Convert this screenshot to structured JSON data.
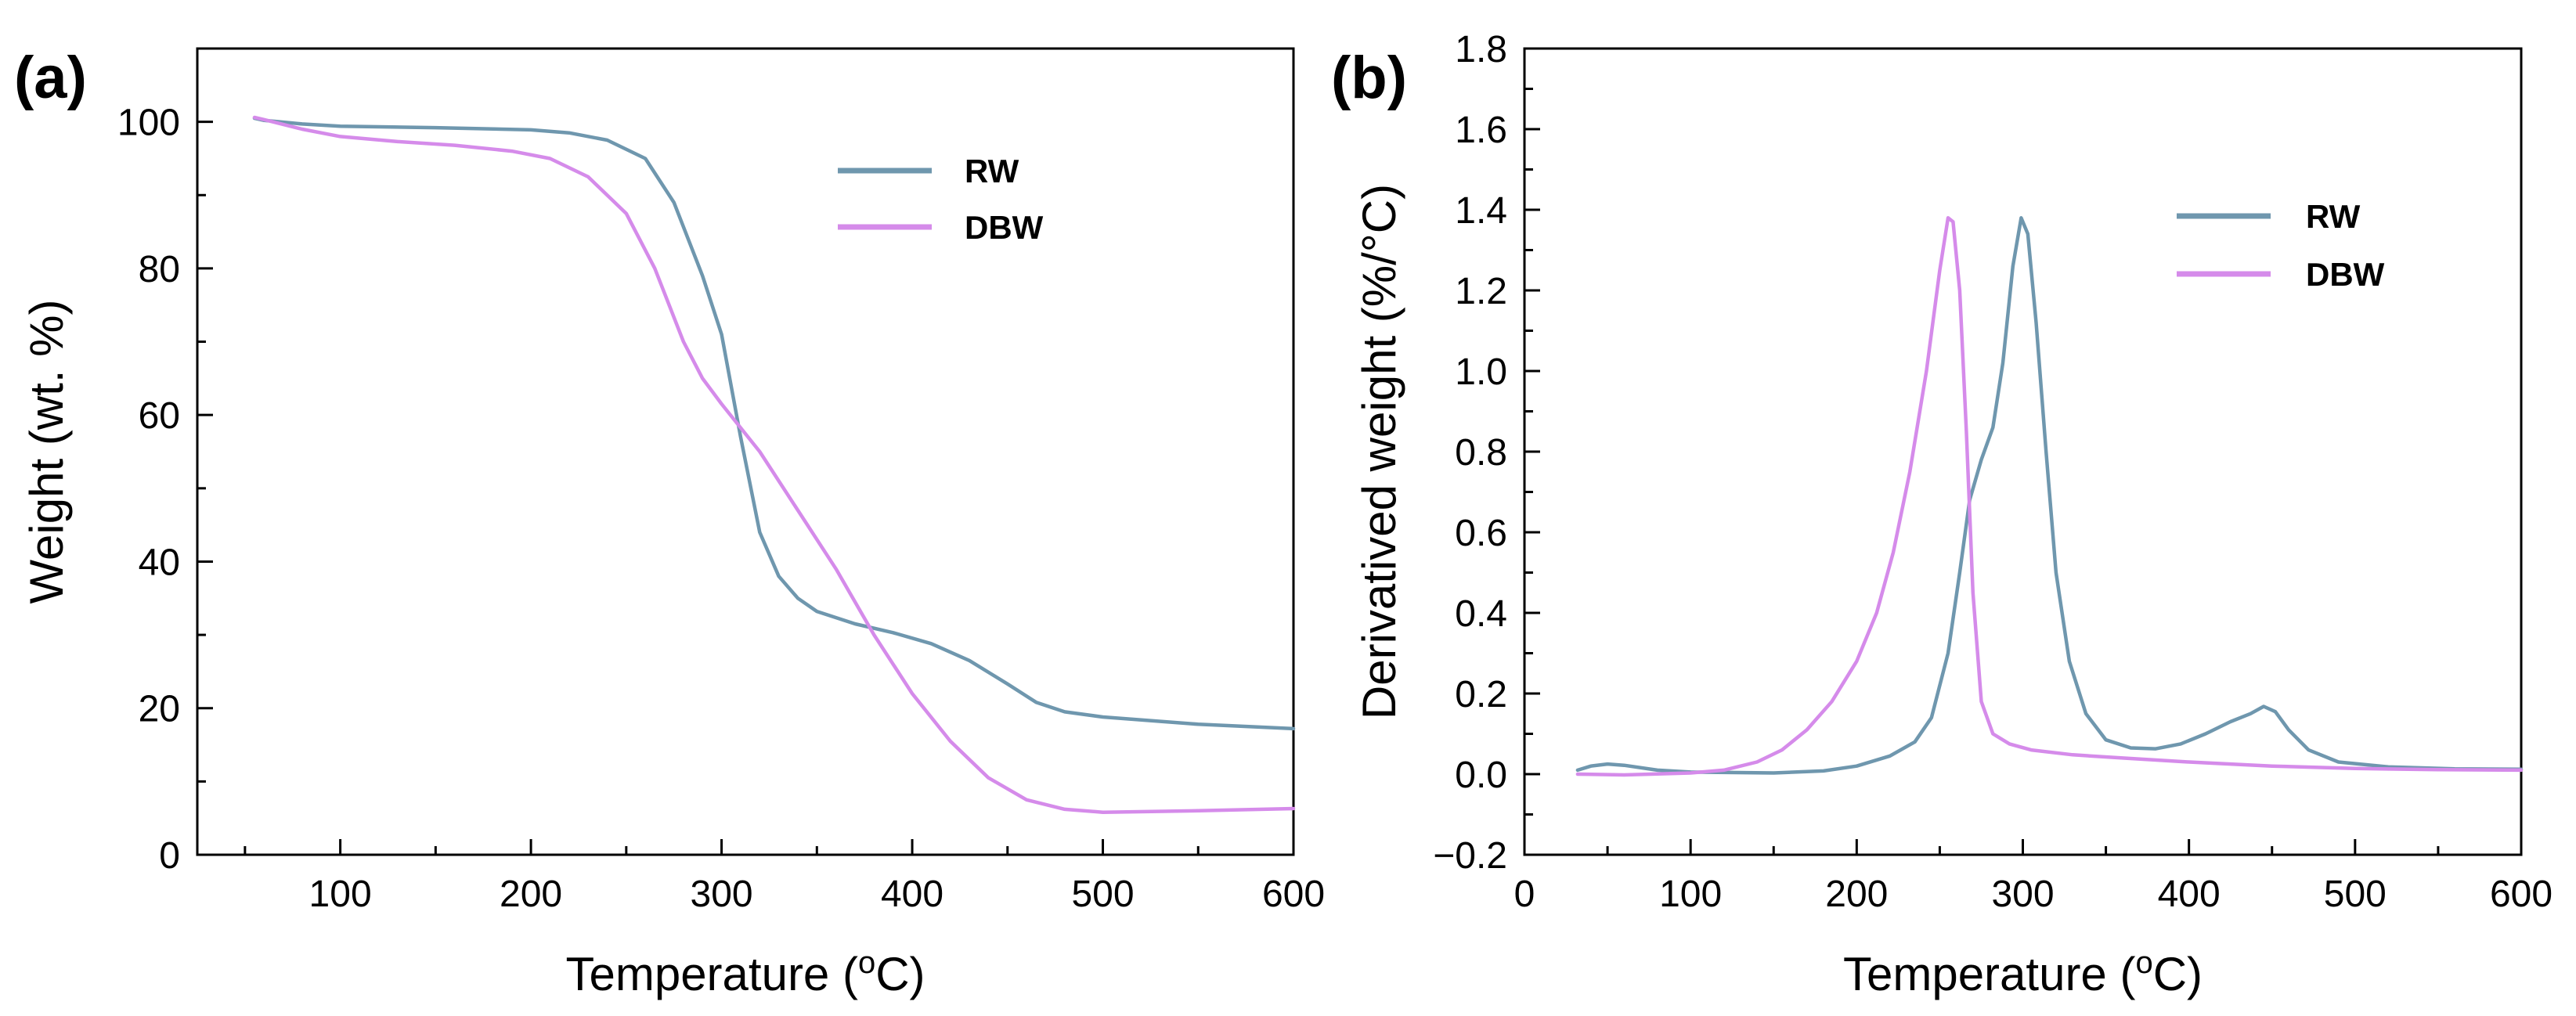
{
  "colors": {
    "rw": "#6F97AE",
    "dbw": "#D58BEA"
  },
  "chart_data": [
    {
      "id": "a",
      "panel_label": "(a)",
      "type": "line",
      "xlabel_main": "Temperature (",
      "xlabel_sup": "o",
      "xlabel_end": "C)",
      "ylabel": "Weight (wt. %)",
      "xlim": [
        25,
        600
      ],
      "ylim": [
        0,
        110
      ],
      "xticks": [
        100,
        200,
        300,
        400,
        500,
        600
      ],
      "yticks": [
        0,
        20,
        40,
        60,
        80,
        100
      ],
      "legend_position": "top-right",
      "series": [
        {
          "name": "RW",
          "color": "#6F97AE",
          "points": [
            [
              55,
              100.5
            ],
            [
              60,
              100.2
            ],
            [
              80,
              99.7
            ],
            [
              100,
              99.4
            ],
            [
              150,
              99.2
            ],
            [
              200,
              98.9
            ],
            [
              220,
              98.5
            ],
            [
              240,
              97.5
            ],
            [
              260,
              95
            ],
            [
              275,
              89
            ],
            [
              290,
              79
            ],
            [
              300,
              71
            ],
            [
              310,
              57
            ],
            [
              320,
              44
            ],
            [
              330,
              38
            ],
            [
              340,
              35
            ],
            [
              350,
              33.2
            ],
            [
              370,
              31.5
            ],
            [
              390,
              30.3
            ],
            [
              410,
              28.8
            ],
            [
              430,
              26.5
            ],
            [
              450,
              23.3
            ],
            [
              465,
              20.8
            ],
            [
              480,
              19.5
            ],
            [
              500,
              18.8
            ],
            [
              550,
              17.8
            ],
            [
              600,
              17.2
            ]
          ]
        },
        {
          "name": "DBW",
          "color": "#D58BEA",
          "points": [
            [
              55,
              100.6
            ],
            [
              60,
              100.3
            ],
            [
              80,
              99
            ],
            [
              100,
              98
            ],
            [
              130,
              97.3
            ],
            [
              160,
              96.8
            ],
            [
              190,
              96
            ],
            [
              210,
              95
            ],
            [
              230,
              92.5
            ],
            [
              250,
              87.5
            ],
            [
              265,
              80
            ],
            [
              280,
              70
            ],
            [
              290,
              65
            ],
            [
              300,
              61.5
            ],
            [
              320,
              55
            ],
            [
              340,
              47
            ],
            [
              360,
              39
            ],
            [
              380,
              30
            ],
            [
              400,
              22
            ],
            [
              420,
              15.5
            ],
            [
              440,
              10.5
            ],
            [
              460,
              7.5
            ],
            [
              480,
              6.2
            ],
            [
              500,
              5.8
            ],
            [
              550,
              6
            ],
            [
              600,
              6.3
            ]
          ]
        }
      ]
    },
    {
      "id": "b",
      "panel_label": "(b)",
      "type": "line",
      "xlabel_main": "Temperature (",
      "xlabel_sup": "o",
      "xlabel_end": "C)",
      "ylabel": "Derivatived weight (%/°C)",
      "xlim": [
        0,
        600
      ],
      "ylim": [
        -0.2,
        1.8
      ],
      "xticks": [
        0,
        100,
        200,
        300,
        400,
        500,
        600
      ],
      "xtick_labels": [
        "0",
        "100",
        "200",
        "300",
        "400",
        "500",
        "600"
      ],
      "yticks": [
        -0.2,
        0.0,
        0.2,
        0.4,
        0.6,
        0.8,
        1.0,
        1.2,
        1.4,
        1.6,
        1.8
      ],
      "ytick_labels": [
        "−0.2",
        "0.0",
        "0.2",
        "0.4",
        "0.6",
        "0.8",
        "1.0",
        "1.2",
        "1.4",
        "1.6",
        "1.8"
      ],
      "legend_position": "top-right",
      "series": [
        {
          "name": "RW",
          "color": "#6F97AE",
          "points": [
            [
              32,
              0.01
            ],
            [
              40,
              0.02
            ],
            [
              50,
              0.025
            ],
            [
              60,
              0.022
            ],
            [
              80,
              0.01
            ],
            [
              100,
              0.005
            ],
            [
              150,
              0.003
            ],
            [
              180,
              0.008
            ],
            [
              200,
              0.02
            ],
            [
              220,
              0.045
            ],
            [
              235,
              0.08
            ],
            [
              245,
              0.14
            ],
            [
              255,
              0.3
            ],
            [
              262,
              0.5
            ],
            [
              268,
              0.68
            ],
            [
              275,
              0.78
            ],
            [
              282,
              0.86
            ],
            [
              288,
              1.02
            ],
            [
              294,
              1.26
            ],
            [
              299,
              1.38
            ],
            [
              303,
              1.34
            ],
            [
              308,
              1.12
            ],
            [
              314,
              0.8
            ],
            [
              320,
              0.5
            ],
            [
              328,
              0.28
            ],
            [
              338,
              0.15
            ],
            [
              350,
              0.085
            ],
            [
              365,
              0.065
            ],
            [
              380,
              0.063
            ],
            [
              395,
              0.075
            ],
            [
              410,
              0.1
            ],
            [
              425,
              0.13
            ],
            [
              437,
              0.15
            ],
            [
              445,
              0.168
            ],
            [
              452,
              0.155
            ],
            [
              460,
              0.11
            ],
            [
              472,
              0.06
            ],
            [
              490,
              0.03
            ],
            [
              520,
              0.018
            ],
            [
              560,
              0.013
            ],
            [
              600,
              0.012
            ]
          ]
        },
        {
          "name": "DBW",
          "color": "#D58BEA",
          "points": [
            [
              32,
              0
            ],
            [
              60,
              -0.002
            ],
            [
              100,
              0.003
            ],
            [
              120,
              0.01
            ],
            [
              140,
              0.03
            ],
            [
              155,
              0.06
            ],
            [
              170,
              0.11
            ],
            [
              185,
              0.18
            ],
            [
              200,
              0.28
            ],
            [
              212,
              0.4
            ],
            [
              222,
              0.55
            ],
            [
              232,
              0.75
            ],
            [
              242,
              1.0
            ],
            [
              250,
              1.25
            ],
            [
              255,
              1.38
            ],
            [
              258,
              1.37
            ],
            [
              262,
              1.2
            ],
            [
              266,
              0.85
            ],
            [
              270,
              0.45
            ],
            [
              275,
              0.18
            ],
            [
              282,
              0.1
            ],
            [
              292,
              0.075
            ],
            [
              305,
              0.06
            ],
            [
              330,
              0.048
            ],
            [
              360,
              0.04
            ],
            [
              400,
              0.03
            ],
            [
              450,
              0.02
            ],
            [
              500,
              0.014
            ],
            [
              550,
              0.011
            ],
            [
              600,
              0.01
            ]
          ]
        }
      ]
    }
  ]
}
